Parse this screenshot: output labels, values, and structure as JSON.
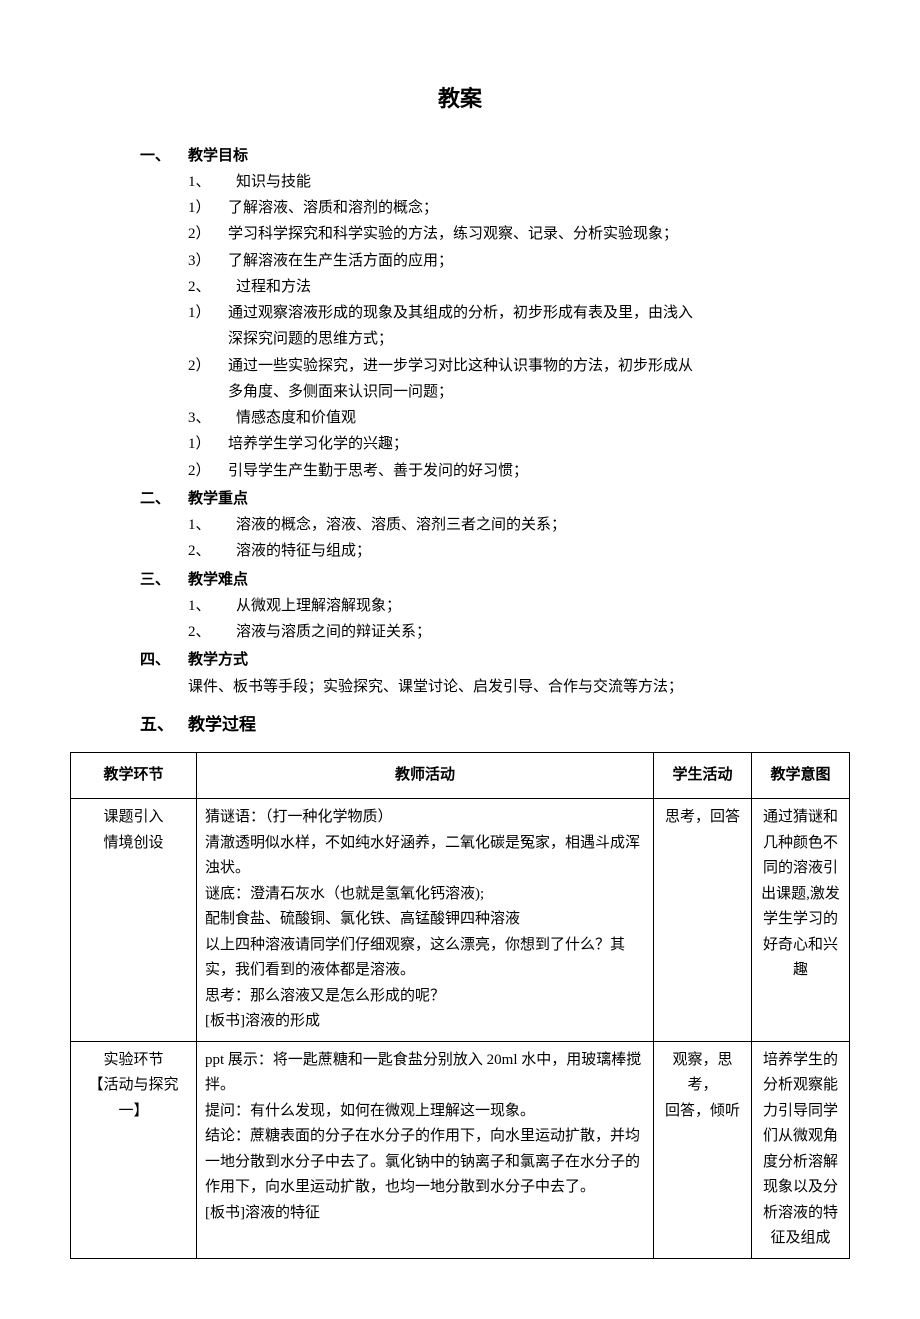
{
  "title": "教案",
  "sections": [
    {
      "num": "一、",
      "label": "教学目标",
      "items": [
        {
          "type": "h2",
          "num": "1、",
          "text": "知识与技能"
        },
        {
          "type": "h3",
          "num": "1）",
          "text": "了解溶液、溶质和溶剂的概念；"
        },
        {
          "type": "h3",
          "num": "2）",
          "text": "学习科学探究和科学实验的方法，练习观察、记录、分析实验现象；"
        },
        {
          "type": "h3",
          "num": "3）",
          "text": "了解溶液在生产生活方面的应用；"
        },
        {
          "type": "h2",
          "num": "2、",
          "text": "过程和方法"
        },
        {
          "type": "h3",
          "num": "1）",
          "text": "通过观察溶液形成的现象及其组成的分析，初步形成有表及里，由浅入"
        },
        {
          "type": "h3-cont",
          "text": "深探究问题的思维方式；"
        },
        {
          "type": "h3",
          "num": "2）",
          "text": "通过一些实验探究，进一步学习对比这种认识事物的方法，初步形成从"
        },
        {
          "type": "h3-cont",
          "text": "多角度、多侧面来认识同一问题；"
        },
        {
          "type": "h2",
          "num": "3、",
          "text": "情感态度和价值观"
        },
        {
          "type": "h3",
          "num": "1）",
          "text": "培养学生学习化学的兴趣；"
        },
        {
          "type": "h3",
          "num": "2）",
          "text": "引导学生产生勤于思考、善于发问的好习惯；"
        }
      ]
    },
    {
      "num": "二、",
      "label": "教学重点",
      "items": [
        {
          "type": "h2",
          "num": "1、",
          "text": "溶液的概念，溶液、溶质、溶剂三者之间的关系；"
        },
        {
          "type": "h2",
          "num": "2、",
          "text": "溶液的特征与组成；"
        }
      ]
    },
    {
      "num": "三、",
      "label": "教学难点",
      "items": [
        {
          "type": "h2",
          "num": "1、",
          "text": "从微观上理解溶解现象；"
        },
        {
          "type": "h2",
          "num": "2、",
          "text": "溶液与溶质之间的辩证关系；"
        }
      ]
    },
    {
      "num": "四、",
      "label": "教学方式",
      "items": [
        {
          "type": "plain",
          "text": "课件、板书等手段；实验探究、课堂讨论、启发引导、合作与交流等方法；"
        }
      ]
    }
  ],
  "section5": {
    "num": "五、",
    "label": "教学过程"
  },
  "table": {
    "headers": [
      "教学环节",
      "教师活动",
      "学生活动",
      "教学意图"
    ],
    "rows": [
      {
        "col1": [
          "课题引入",
          "情境创设"
        ],
        "col2": [
          "猜谜语：（打一种化学物质）",
          "清澈透明似水样，不如纯水好涵养，二氧化碳是冤家，相遇斗成浑浊状。",
          "谜底：澄清石灰水（也就是氢氧化钙溶液);",
          "配制食盐、硫酸铜、氯化铁、高锰酸钾四种溶液",
          "以上四种溶液请同学们仔细观察，这么漂亮，你想到了什么？其实，我们看到的液体都是溶液。",
          "思考：那么溶液又是怎么形成的呢？",
          "[板书]溶液的形成"
        ],
        "col3": [
          "思考，回答"
        ],
        "col4": [
          "通过猜谜和几种颜色不同的溶液引出课题,激发学生学习的好奇心和兴趣"
        ]
      },
      {
        "col1": [
          "实验环节",
          "【活动与探究一】"
        ],
        "col2": [
          "ppt 展示：将一匙蔗糖和一匙食盐分别放入 20ml 水中，用玻璃棒搅拌。",
          "提问：有什么发现，如何在微观上理解这一现象。",
          "结论：蔗糖表面的分子在水分子的作用下，向水里运动扩散，并均一地分散到水分子中去了。氯化钠中的钠离子和氯离子在水分子的作用下，向水里运动扩散，也均一地分散到水分子中去了。",
          "[板书]溶液的特征"
        ],
        "col3": [
          "观察，思考，",
          "回答，倾听"
        ],
        "col4": [
          "培养学生的分析观察能力引导同学们从微观角度分析溶解现象以及分析溶液的特征及组成"
        ]
      }
    ]
  }
}
